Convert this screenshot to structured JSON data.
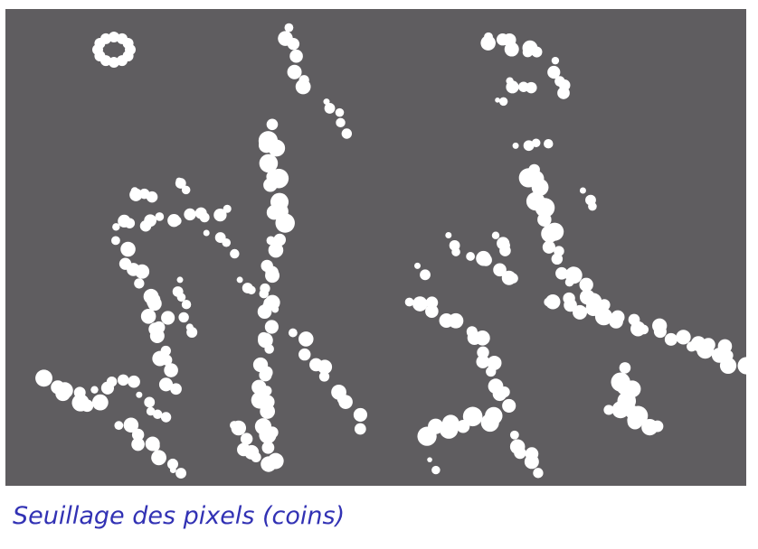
{
  "figure": {
    "description_icon": "threshold-mask-image",
    "background_color": "#5f5d60",
    "blob_color": "#ffffff"
  },
  "caption": {
    "text": "Seuillage des pixels (coins)",
    "color": "#3232b4"
  }
}
